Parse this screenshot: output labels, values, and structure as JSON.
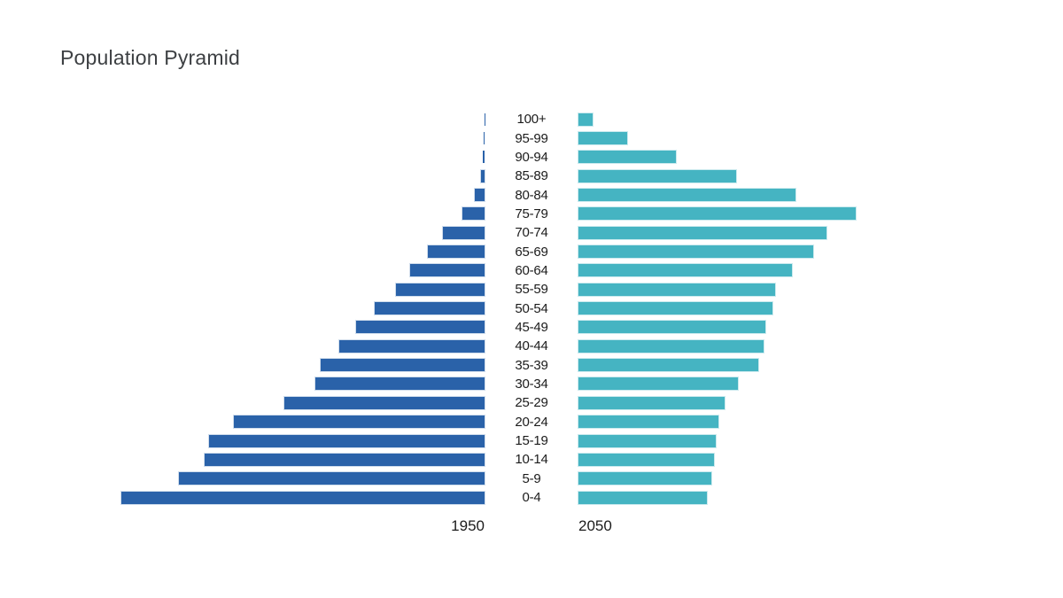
{
  "title": "Population Pyramid",
  "colors": {
    "bar_1950": "#2a62a9",
    "bar_2050": "#45b4c2",
    "title_text": "#3d4043",
    "label_text": "#1b1b1b",
    "background": "#ffffff"
  },
  "axis": {
    "left_label": "1950",
    "right_label": "2050"
  },
  "chart_data": {
    "type": "bar",
    "variant": "population-pyramid",
    "orientation": "horizontal, left series mirrored",
    "title": "Population Pyramid",
    "categories": [
      "100+",
      "95-99",
      "90-94",
      "85-89",
      "80-84",
      "75-79",
      "70-74",
      "65-69",
      "60-64",
      "55-59",
      "50-54",
      "45-49",
      "40-44",
      "35-39",
      "30-34",
      "25-29",
      "20-24",
      "15-19",
      "10-14",
      "5-9",
      "0-4"
    ],
    "series": [
      {
        "name": "1950",
        "side": "left",
        "color": "#2a62a9",
        "values": [
          0.1,
          0.2,
          0.4,
          0.9,
          2.4,
          5.4,
          10.2,
          13.9,
          18.3,
          21.7,
          27.0,
          31.5,
          35.7,
          40.2,
          41.5,
          49.1,
          61.5,
          67.6,
          68.7,
          75.0,
          89.1
        ]
      },
      {
        "name": "2050",
        "side": "right",
        "color": "#45b4c2",
        "values": [
          3.5,
          12.0,
          23.9,
          38.7,
          53.3,
          68.0,
          60.9,
          57.5,
          52.4,
          48.3,
          47.6,
          45.9,
          45.4,
          44.1,
          39.1,
          35.9,
          34.3,
          33.7,
          33.3,
          32.6,
          31.5
        ]
      }
    ],
    "units": "relative bar length, percent of half-axis width (no numeric axis shown in chart)",
    "axis_max": 100,
    "xlabel": "",
    "ylabel": "",
    "grid": false,
    "legend": "none; series year labels shown under each half of the chart"
  }
}
